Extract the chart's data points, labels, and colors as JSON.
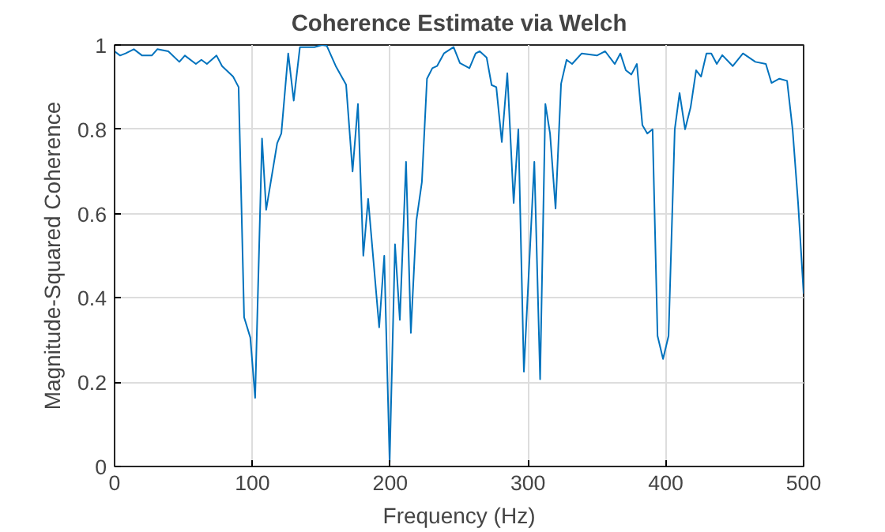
{
  "chart_data": {
    "type": "line",
    "title": "Coherence Estimate via Welch",
    "xlabel": "Frequency (Hz)",
    "ylabel": "Magnitude-Squared Coherence",
    "xlim": [
      0,
      500
    ],
    "ylim": [
      0,
      1
    ],
    "xticks": [
      0,
      100,
      200,
      300,
      400,
      500
    ],
    "yticks": [
      0,
      0.2,
      0.4,
      0.6,
      0.8,
      1
    ],
    "grid": true,
    "series": [
      {
        "color": "#0072bd",
        "x": [
          0,
          4,
          8,
          14,
          20,
          27,
          31,
          39,
          47,
          51,
          59,
          63,
          67,
          74,
          78,
          86,
          90,
          94,
          98.5,
          102,
          107,
          110,
          118,
          121,
          126,
          130,
          134.5,
          145,
          150.6,
          154,
          160.5,
          168,
          172.7,
          176.6,
          180.5,
          184,
          192,
          195.7,
          199.6,
          203.5,
          207,
          211.5,
          215,
          219,
          223,
          226.7,
          230.6,
          234,
          239,
          246,
          250.6,
          257.5,
          262,
          265,
          270,
          273.6,
          277,
          281,
          285,
          289.6,
          293,
          297,
          304.6,
          308.8,
          312.6,
          316,
          320,
          324,
          328,
          332,
          339,
          350,
          356,
          363,
          367,
          371,
          375,
          379,
          383,
          386.6,
          390.4,
          394,
          398,
          402,
          406.5,
          410,
          414,
          418,
          422,
          425.6,
          429.5,
          433,
          437,
          441,
          448.6,
          456,
          465,
          472.6,
          476.7,
          482.4,
          488,
          492,
          496,
          500
        ],
        "values": [
          0.985,
          0.975,
          0.98,
          0.99,
          0.975,
          0.975,
          0.99,
          0.985,
          0.96,
          0.975,
          0.955,
          0.965,
          0.955,
          0.975,
          0.95,
          0.925,
          0.9,
          0.354,
          0.306,
          0.163,
          0.778,
          0.609,
          0.767,
          0.79,
          0.98,
          0.868,
          0.995,
          0.995,
          1.0,
          0.998,
          0.95,
          0.906,
          0.7,
          0.86,
          0.5,
          0.635,
          0.33,
          0.5,
          0.01,
          0.527,
          0.348,
          0.723,
          0.317,
          0.583,
          0.675,
          0.92,
          0.945,
          0.95,
          0.98,
          0.995,
          0.957,
          0.945,
          0.98,
          0.985,
          0.97,
          0.905,
          0.9,
          0.77,
          0.933,
          0.625,
          0.8,
          0.225,
          0.723,
          0.207,
          0.86,
          0.79,
          0.612,
          0.908,
          0.965,
          0.955,
          0.98,
          0.975,
          0.985,
          0.955,
          0.98,
          0.94,
          0.93,
          0.955,
          0.81,
          0.79,
          0.8,
          0.31,
          0.255,
          0.31,
          0.8,
          0.886,
          0.8,
          0.852,
          0.94,
          0.925,
          0.98,
          0.98,
          0.955,
          0.976,
          0.95,
          0.98,
          0.96,
          0.955,
          0.91,
          0.92,
          0.915,
          0.8,
          0.625,
          0.41
        ]
      }
    ]
  }
}
